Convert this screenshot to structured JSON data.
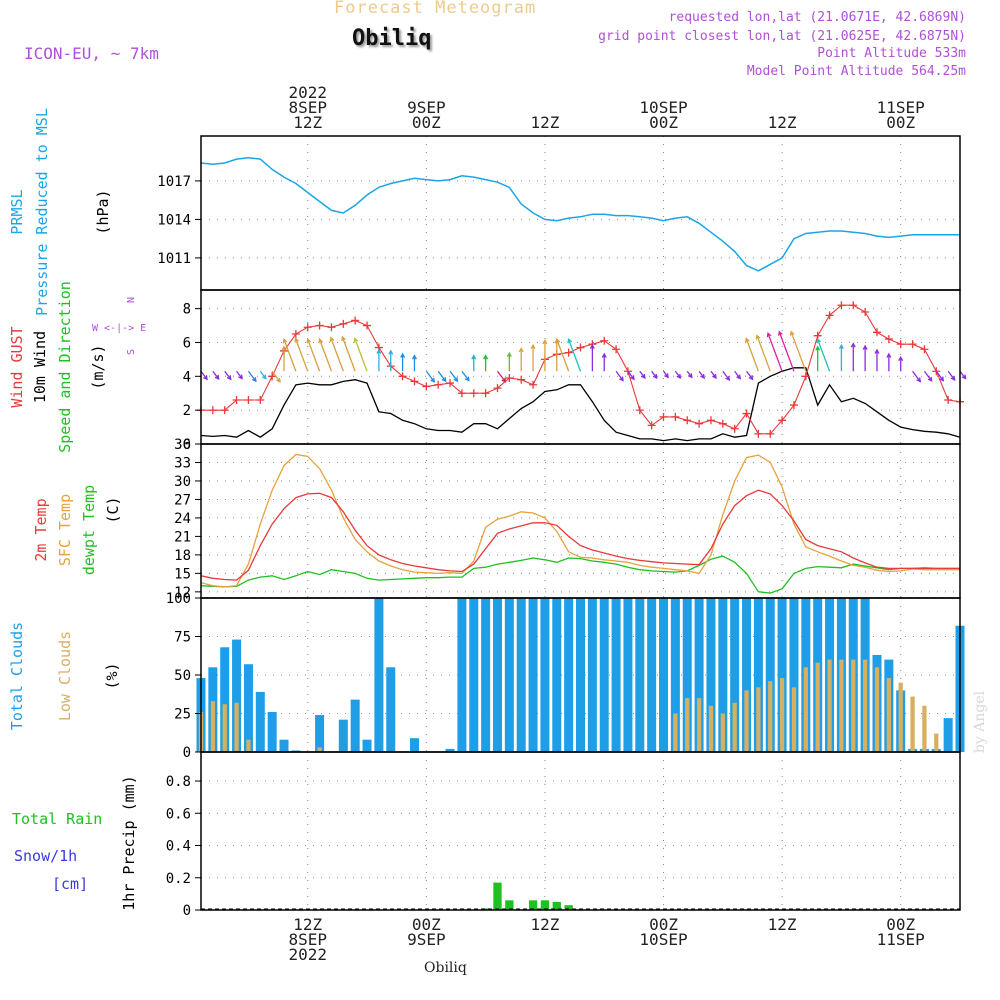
{
  "header": {
    "title_top": "Forecast Meteogram",
    "station": "Obiliq",
    "model": "ICON-EU, ~ 7km",
    "requested": "requested lon,lat (21.0671E, 42.6869N)",
    "gridpoint": "grid point closest lon,lat (21.0625E, 42.6875N)",
    "point_alt": "Point Altitude 533m",
    "model_alt": "Model Point Altitude 564.25m"
  },
  "footer": {
    "station": "Obiliq",
    "credit": "by Angel"
  },
  "colors": {
    "pressure": "#1aa6e6",
    "gust": "#e83a3a",
    "wind": "#000000",
    "dir_label": "#20c020",
    "sfc": "#e6a23c",
    "dew": "#20c020",
    "total_clouds": "#1e9ee6",
    "low_clouds": "#d6b060",
    "rain": "#20c020",
    "snow": "#3a3adf",
    "meta": "#b050d8"
  },
  "chart_data": [
    {
      "id": "pressure",
      "type": "line",
      "ylabel": "(hPa)",
      "title": "PRMSL Pressure Reduced to MSL",
      "ylim": [
        1008.5,
        1020.5
      ],
      "yticks": [
        1011,
        1014,
        1017
      ],
      "x_hours": [
        0,
        1,
        2,
        3,
        4,
        5,
        6,
        7,
        8,
        9,
        10,
        11,
        12,
        13,
        14,
        15,
        16,
        17,
        18,
        19,
        20,
        21,
        22,
        23,
        24,
        25,
        26,
        27,
        28,
        29,
        30,
        31,
        32,
        33,
        34,
        35,
        36,
        37,
        38,
        39,
        40,
        41,
        42,
        43,
        44,
        45,
        46,
        47,
        48,
        49,
        50,
        51,
        52,
        53,
        54,
        55,
        56,
        57,
        58,
        59,
        60,
        61,
        62,
        63,
        64
      ],
      "values": [
        1018.4,
        1018.3,
        1018.4,
        1018.7,
        1018.8,
        1018.7,
        1017.9,
        1017.3,
        1016.8,
        1016.1,
        1015.4,
        1014.7,
        1014.5,
        1015.1,
        1015.9,
        1016.5,
        1016.8,
        1017.0,
        1017.2,
        1017.1,
        1017.0,
        1017.1,
        1017.4,
        1017.3,
        1017.1,
        1016.9,
        1016.5,
        1015.2,
        1014.5,
        1014.0,
        1013.9,
        1014.1,
        1014.2,
        1014.4,
        1014.4,
        1014.3,
        1014.3,
        1014.2,
        1014.1,
        1013.9,
        1014.1,
        1014.2,
        1013.7,
        1013.0,
        1012.3,
        1011.5,
        1010.4,
        1010.0,
        1010.5,
        1011.0,
        1012.5,
        1012.9,
        1013.0,
        1013.1,
        1013.1,
        1013.0,
        1012.9,
        1012.7,
        1012.6,
        1012.7,
        1012.8,
        1012.8,
        1012.8,
        1012.8,
        1012.8
      ]
    },
    {
      "id": "wind",
      "type": "line",
      "ylabel": "(m/s)",
      "ylim": [
        0,
        9.1
      ],
      "yticks": [
        0,
        2,
        4,
        6,
        8
      ],
      "x_hours": [
        0,
        1,
        2,
        3,
        4,
        5,
        6,
        7,
        8,
        9,
        10,
        11,
        12,
        13,
        14,
        15,
        16,
        17,
        18,
        19,
        20,
        21,
        22,
        23,
        24,
        25,
        26,
        27,
        28,
        29,
        30,
        31,
        32,
        33,
        34,
        35,
        36,
        37,
        38,
        39,
        40,
        41,
        42,
        43,
        44,
        45,
        46,
        47,
        48,
        49,
        50,
        51,
        52,
        53,
        54,
        55,
        56,
        57,
        58,
        59,
        60,
        61,
        62,
        63,
        64
      ],
      "series": [
        {
          "name": "Wind GUST",
          "values": [
            2.0,
            2.0,
            2.0,
            2.6,
            2.6,
            2.6,
            4.0,
            5.5,
            6.5,
            6.9,
            7.0,
            6.9,
            7.1,
            7.3,
            7.0,
            5.7,
            4.6,
            4.0,
            3.7,
            3.4,
            3.5,
            3.6,
            3.0,
            3.0,
            3.0,
            3.3,
            3.9,
            3.8,
            3.5,
            5.0,
            5.3,
            5.4,
            5.7,
            5.9,
            6.1,
            5.6,
            4.3,
            2.0,
            1.1,
            1.6,
            1.6,
            1.4,
            1.2,
            1.4,
            1.2,
            0.9,
            1.8,
            0.6,
            0.6,
            1.4,
            2.3,
            4.0,
            6.4,
            7.6,
            8.2,
            8.2,
            7.8,
            6.6,
            6.2,
            5.9,
            5.9,
            5.6,
            4.3,
            2.6,
            2.5
          ]
        },
        {
          "name": "10m Wind",
          "values": [
            0.5,
            0.45,
            0.5,
            0.4,
            0.8,
            0.4,
            0.9,
            2.3,
            3.5,
            3.6,
            3.5,
            3.5,
            3.7,
            3.8,
            3.6,
            1.9,
            1.8,
            1.4,
            1.2,
            0.9,
            0.8,
            0.8,
            0.7,
            1.2,
            1.2,
            0.9,
            1.5,
            2.1,
            2.5,
            3.1,
            3.2,
            3.5,
            3.5,
            2.5,
            1.4,
            0.7,
            0.5,
            0.3,
            0.3,
            0.2,
            0.3,
            0.2,
            0.3,
            0.3,
            0.6,
            0.4,
            0.5,
            3.6,
            4.0,
            4.3,
            4.5,
            4.5,
            2.3,
            3.5,
            2.5,
            2.7,
            2.4,
            1.9,
            1.4,
            1.0,
            0.85,
            0.75,
            0.7,
            0.6,
            0.4
          ]
        }
      ]
    },
    {
      "id": "temperature",
      "type": "line",
      "ylabel": "(C)",
      "ylim": [
        11,
        36
      ],
      "yticks": [
        12,
        15,
        18,
        21,
        24,
        27,
        30,
        33,
        36
      ],
      "x_hours": [
        0,
        1,
        2,
        3,
        4,
        5,
        6,
        7,
        8,
        9,
        10,
        11,
        12,
        13,
        14,
        15,
        16,
        17,
        18,
        19,
        20,
        21,
        22,
        23,
        24,
        25,
        26,
        27,
        28,
        29,
        30,
        31,
        32,
        33,
        34,
        35,
        36,
        37,
        38,
        39,
        40,
        41,
        42,
        43,
        44,
        45,
        46,
        47,
        48,
        49,
        50,
        51,
        52,
        53,
        54,
        55,
        56,
        57,
        58,
        59,
        60,
        61,
        62,
        63,
        64
      ],
      "series": [
        {
          "name": "2m Temp",
          "values": [
            14.6,
            14.2,
            14.0,
            13.9,
            15.5,
            19.5,
            23.0,
            25.5,
            27.3,
            27.9,
            28.0,
            27.3,
            25.0,
            22.0,
            19.5,
            18.0,
            17.2,
            16.6,
            16.2,
            15.9,
            15.6,
            15.4,
            15.3,
            16.5,
            19.0,
            21.5,
            22.2,
            22.7,
            23.2,
            23.2,
            22.8,
            21.0,
            19.5,
            18.8,
            18.3,
            17.8,
            17.4,
            17.1,
            16.9,
            16.7,
            16.6,
            16.5,
            16.4,
            19.0,
            23.0,
            26.0,
            27.6,
            28.5,
            27.9,
            26.0,
            23.5,
            20.5,
            19.5,
            19.0,
            18.5,
            17.5,
            16.7,
            16.0,
            15.8,
            15.8,
            15.8,
            15.8,
            15.8,
            15.8,
            15.8
          ]
        },
        {
          "name": "SFC Temp",
          "values": [
            13.5,
            13.0,
            12.8,
            13.0,
            16.5,
            23.0,
            28.5,
            32.5,
            34.3,
            34.0,
            32.0,
            28.5,
            24.0,
            20.5,
            18.5,
            17.0,
            16.2,
            15.6,
            15.2,
            15.1,
            15.0,
            15.1,
            15.0,
            17.0,
            22.5,
            23.8,
            24.3,
            25.0,
            24.8,
            24.0,
            21.8,
            18.5,
            17.6,
            17.5,
            17.2,
            17.0,
            16.8,
            16.3,
            16.0,
            15.8,
            15.6,
            15.4,
            15.0,
            18.0,
            24.5,
            30.0,
            33.8,
            34.2,
            33.0,
            29.0,
            23.0,
            19.3,
            18.5,
            17.8,
            17.0,
            16.3,
            16.0,
            15.5,
            15.3,
            15.4,
            15.7,
            15.6,
            15.6,
            15.6,
            15.6
          ]
        },
        {
          "name": "dewpt Temp",
          "values": [
            13.0,
            12.9,
            12.8,
            12.9,
            13.9,
            14.4,
            14.6,
            14.0,
            14.6,
            15.3,
            14.8,
            15.6,
            15.3,
            15.0,
            14.2,
            13.9,
            14.0,
            14.1,
            14.2,
            14.3,
            14.3,
            14.4,
            14.4,
            15.8,
            16.0,
            16.5,
            16.8,
            17.1,
            17.5,
            17.2,
            16.8,
            17.5,
            17.4,
            17.0,
            16.8,
            16.5,
            16.0,
            15.6,
            15.4,
            15.3,
            15.2,
            15.4,
            16.3,
            17.3,
            17.8,
            16.8,
            15.0,
            12.0,
            11.8,
            12.5,
            15.0,
            15.8,
            16.1,
            16.0,
            15.9,
            16.5,
            16.2,
            15.9,
            15.6,
            15.8,
            15.8,
            15.9,
            15.8,
            15.8,
            15.8
          ]
        }
      ]
    },
    {
      "id": "clouds",
      "type": "bar",
      "ylabel": "(%)",
      "ylim": [
        0,
        100
      ],
      "yticks": [
        0,
        25,
        50,
        75,
        100
      ],
      "x_hours": [
        0,
        1,
        2,
        3,
        4,
        5,
        6,
        7,
        8,
        9,
        10,
        11,
        12,
        13,
        14,
        15,
        16,
        17,
        18,
        19,
        20,
        21,
        22,
        23,
        24,
        25,
        26,
        27,
        28,
        29,
        30,
        31,
        32,
        33,
        34,
        35,
        36,
        37,
        38,
        39,
        40,
        41,
        42,
        43,
        44,
        45,
        46,
        47,
        48,
        49,
        50,
        51,
        52,
        53,
        54,
        55,
        56,
        57,
        58,
        59,
        60,
        61,
        62,
        63,
        64
      ],
      "series": [
        {
          "name": "Total Clouds",
          "values": [
            48,
            55,
            68,
            73,
            57,
            39,
            26,
            8,
            1,
            0,
            24,
            0,
            21,
            34,
            8,
            100,
            55,
            0,
            9,
            0,
            0,
            2,
            100,
            100,
            100,
            100,
            100,
            100,
            100,
            100,
            100,
            100,
            100,
            100,
            100,
            100,
            100,
            100,
            100,
            100,
            100,
            100,
            100,
            100,
            100,
            100,
            100,
            100,
            100,
            100,
            100,
            100,
            100,
            100,
            100,
            100,
            100,
            63,
            60,
            40,
            2,
            2,
            2,
            22,
            82
          ]
        },
        {
          "name": "Low Clouds",
          "values": [
            26,
            33,
            31,
            32,
            8,
            0,
            0,
            0,
            0,
            0,
            3,
            0,
            0,
            0,
            0,
            0,
            0,
            0,
            0,
            0,
            0,
            0,
            0,
            0,
            0,
            0,
            0,
            0,
            0,
            0,
            0,
            0,
            0,
            0,
            0,
            0,
            0,
            0,
            0,
            0,
            25,
            35,
            35,
            30,
            25,
            32,
            40,
            42,
            46,
            48,
            42,
            55,
            58,
            60,
            60,
            60,
            60,
            55,
            48,
            45,
            36,
            30,
            12,
            0,
            0
          ]
        }
      ]
    },
    {
      "id": "precip",
      "type": "bar",
      "ylabel": "1hr Precip (mm)",
      "ylim": [
        0,
        0.98
      ],
      "yticks": [
        0,
        0.2,
        0.4,
        0.6,
        0.8
      ],
      "x_hours": [
        0,
        1,
        2,
        3,
        4,
        5,
        6,
        7,
        8,
        9,
        10,
        11,
        12,
        13,
        14,
        15,
        16,
        17,
        18,
        19,
        20,
        21,
        22,
        23,
        24,
        25,
        26,
        27,
        28,
        29,
        30,
        31,
        32,
        33,
        34,
        35,
        36,
        37,
        38,
        39,
        40,
        41,
        42,
        43,
        44,
        45,
        46,
        47,
        48,
        49,
        50,
        51,
        52,
        53,
        54,
        55,
        56,
        57,
        58,
        59,
        60,
        61,
        62,
        63,
        64
      ],
      "series": [
        {
          "name": "Total Rain",
          "values": [
            0,
            0,
            0,
            0,
            0,
            0,
            0,
            0,
            0,
            0,
            0,
            0,
            0,
            0,
            0,
            0,
            0,
            0,
            0,
            0,
            0,
            0,
            0,
            0,
            0.01,
            0.17,
            0.06,
            0,
            0.06,
            0.06,
            0.05,
            0.03,
            0,
            0,
            0,
            0,
            0,
            0,
            0,
            0,
            0,
            0,
            0,
            0,
            0,
            0,
            0,
            0,
            0,
            0,
            0,
            0,
            0,
            0,
            0,
            0,
            0,
            0,
            0,
            0,
            0,
            0,
            0,
            0,
            0
          ]
        }
      ]
    }
  ],
  "x_axis": {
    "top_labels": [
      {
        "hour": 9,
        "lines": [
          "2022",
          "8SEP",
          "12Z"
        ]
      },
      {
        "hour": 19,
        "lines": [
          "9SEP",
          "00Z"
        ]
      },
      {
        "hour": 29,
        "lines": [
          "12Z"
        ]
      },
      {
        "hour": 39,
        "lines": [
          "10SEP",
          "00Z"
        ]
      },
      {
        "hour": 49,
        "lines": [
          "12Z"
        ]
      },
      {
        "hour": 59,
        "lines": [
          "11SEP",
          "00Z"
        ]
      }
    ],
    "bottom_labels": [
      {
        "hour": 9,
        "lines": [
          "12Z",
          "8SEP",
          "2022"
        ]
      },
      {
        "hour": 19,
        "lines": [
          "00Z",
          "9SEP"
        ]
      },
      {
        "hour": 29,
        "lines": [
          "12Z"
        ]
      },
      {
        "hour": 39,
        "lines": [
          "00Z",
          "10SEP"
        ]
      },
      {
        "hour": 49,
        "lines": [
          "12Z"
        ]
      },
      {
        "hour": 59,
        "lines": [
          "00Z",
          "11SEP"
        ]
      }
    ]
  },
  "labels": {
    "pressure_l1": "PRMSL",
    "pressure_l2": "Pressure Reduced to MSL",
    "gust": "Wind GUST",
    "wind10": "10m Wind",
    "dir": "Speed and Direction",
    "compass_n": "N",
    "compass_s": "S",
    "compass_we": "W <-|-> E",
    "t2m": "2m Temp",
    "tsfc": "SFC Temp",
    "tdew": "dewpt Temp",
    "total_clouds": "Total Clouds",
    "low_clouds": "Low Clouds",
    "total_rain": "Total  Rain",
    "snow": "Snow/1h",
    "snow_unit": "[cm]"
  }
}
